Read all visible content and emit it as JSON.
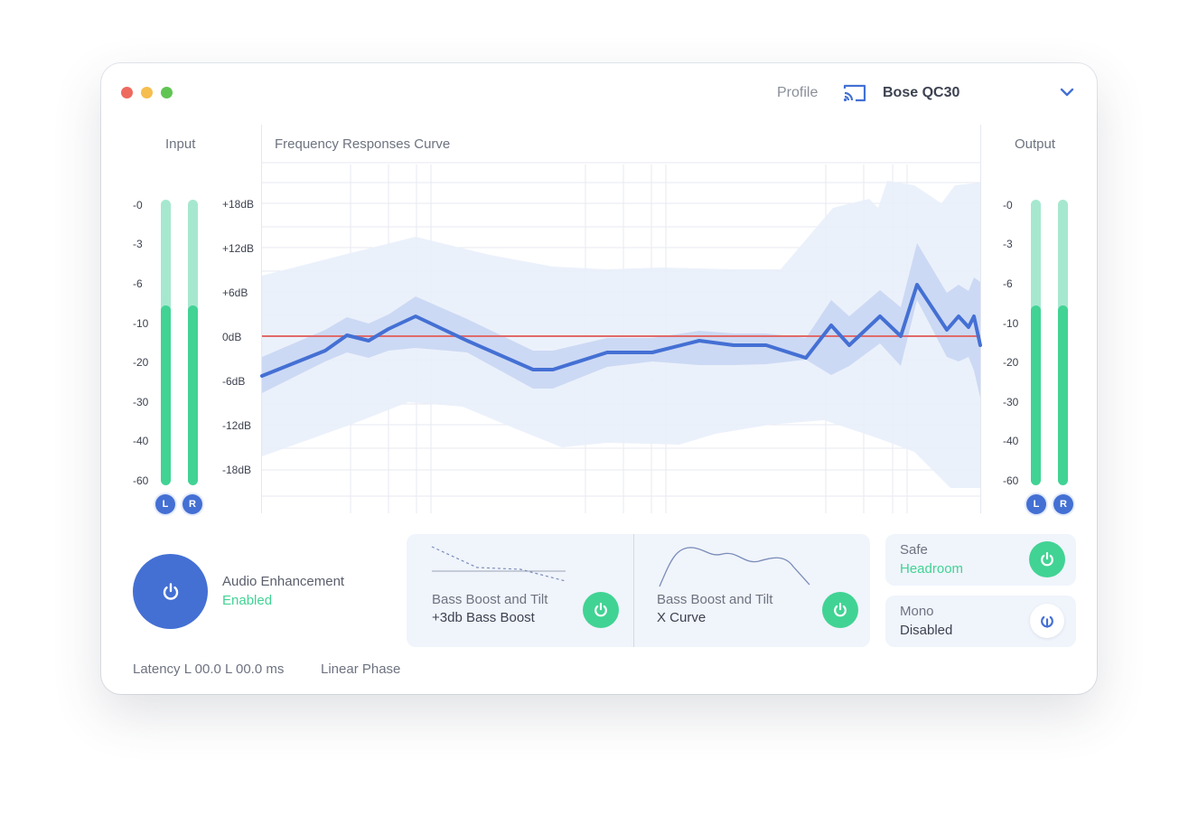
{
  "header": {
    "profile_label": "Profile",
    "device_name": "Bose QC30",
    "cast_icon": "cast-icon",
    "chevron_icon": "chevron-down-icon"
  },
  "input": {
    "title": "Input",
    "scale": [
      "-0",
      "-3",
      "-6",
      "-10",
      "-20",
      "-30",
      "-40",
      "-60"
    ],
    "left_label": "L",
    "right_label": "R",
    "left_level": 0.63,
    "right_level": 0.63
  },
  "output": {
    "title": "Output",
    "scale": [
      "-0",
      "-3",
      "-6",
      "-10",
      "-20",
      "-30",
      "-40",
      "-60"
    ],
    "left_label": "L",
    "right_label": "R",
    "left_level": 0.63,
    "right_level": 0.63
  },
  "graph": {
    "title": "Frequency Responses Curve",
    "db_labels": [
      "+18dB",
      "+12dB",
      "+6dB",
      "0dB",
      "-6dB",
      "-12dB",
      "-18dB"
    ],
    "colors": {
      "curve": "#4470d4",
      "band": "#c9d6f3",
      "outer_band": "#e8eefa",
      "zero_line": "#e06a6a",
      "grid": "#e4e8ef"
    }
  },
  "enhancement": {
    "title": "Audio Enhancement",
    "status": "Enabled",
    "power_icon": "power-icon"
  },
  "footer": {
    "latency": "Latency L 00.0 L 00.0 ms",
    "phase": "Linear Phase"
  },
  "presets": [
    {
      "line1": "Bass Boost and Tilt",
      "line2": "+3db Bass Boost",
      "icon": "power-icon"
    },
    {
      "line1": "Bass Boost and Tilt",
      "line2": "X Curve",
      "icon": "power-icon"
    }
  ],
  "safe": {
    "label": "Safe",
    "value": "Headroom",
    "icon": "power-icon"
  },
  "mono": {
    "label": "Mono",
    "value": "Disabled",
    "icon": "power-icon"
  },
  "accent": {
    "blue": "#4470d4",
    "green": "#41d394"
  }
}
